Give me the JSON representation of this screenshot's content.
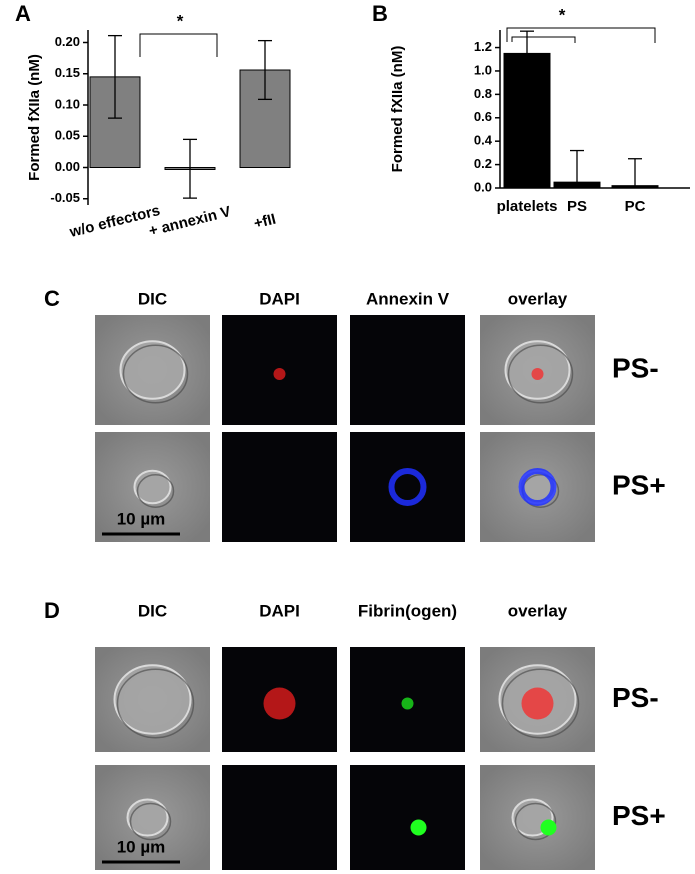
{
  "chart_data": [
    {
      "type": "bar",
      "panel": "A",
      "ylabel": "Formed fXIIa (nM)",
      "color": "#808080",
      "categories": [
        "w/o effectors",
        "+ annexin V",
        "+fII"
      ],
      "values": [
        0.145,
        -0.002,
        0.156
      ],
      "errors": [
        0.066,
        0.047,
        0.047
      ],
      "ylim": [
        -0.06,
        0.22
      ],
      "yticks": [
        {
          "value": -0.05,
          "label": "-0.05"
        },
        {
          "value": 0,
          "label": "0.00"
        },
        {
          "value": 0.05,
          "label": "0.05"
        },
        {
          "value": 0.1,
          "label": "0.10"
        },
        {
          "value": 0.15,
          "label": "0.15"
        },
        {
          "value": 0.2,
          "label": "0.20"
        }
      ],
      "significance": "*"
    },
    {
      "type": "bar",
      "panel": "B",
      "ylabel": "Formed fXIIa (nM)",
      "color": "#000000",
      "categories": [
        "platelets",
        "PS",
        "PC"
      ],
      "values": [
        1.15,
        0.05,
        0.02
      ],
      "errors": [
        0.19,
        0.27,
        0.23
      ],
      "ylim": [
        0,
        1.35
      ],
      "yticks": [
        {
          "value": 0,
          "label": "0.0"
        },
        0.2,
        0.4,
        0.6,
        0.8,
        {
          "value": 1,
          "label": "1.0"
        },
        1.2
      ],
      "significance": "*"
    }
  ],
  "panels": [
    {
      "label": "C",
      "columns": [
        "DIC",
        "DAPI",
        "Annexin V",
        "overlay"
      ],
      "rows": [
        "PS-",
        "PS+"
      ],
      "scale": "10 µm"
    },
    {
      "label": "D",
      "columns": [
        "DIC",
        "DAPI",
        "Fibrin(ogen)",
        "overlay"
      ],
      "rows": [
        "PS-",
        "PS+"
      ],
      "scale": "10 µm"
    }
  ]
}
